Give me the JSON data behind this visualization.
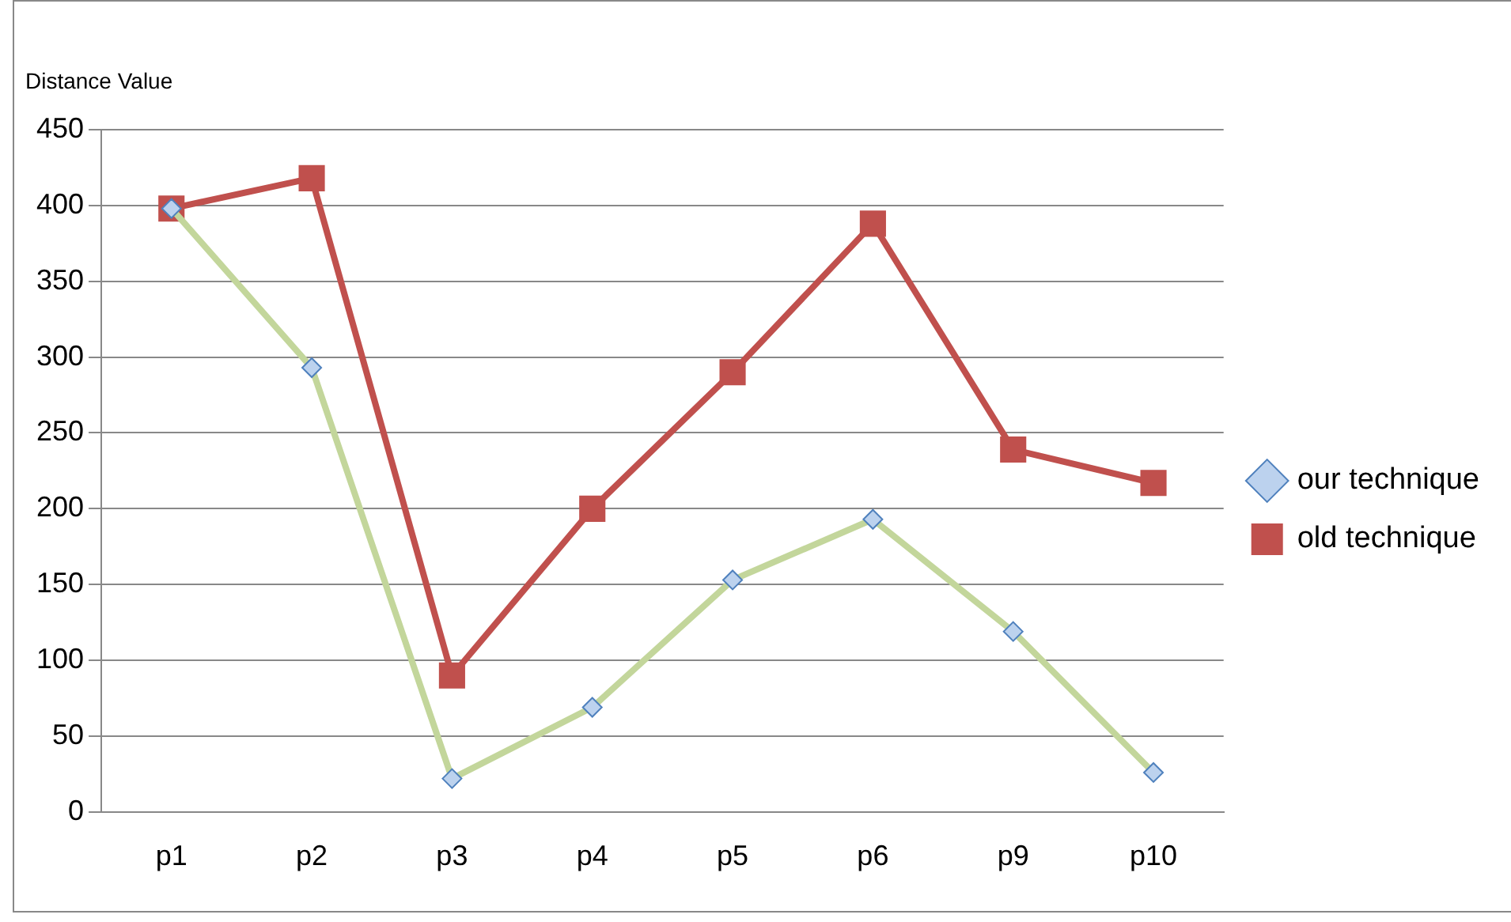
{
  "chart_data": {
    "type": "line",
    "ylabel": "Distance Value",
    "categories": [
      "p1",
      "p2",
      "p3",
      "p4",
      "p5",
      "p6",
      "p9",
      "p10"
    ],
    "series": [
      {
        "name": "our technique",
        "color": "#c3d69b",
        "marker": "diamond",
        "values": [
          398,
          293,
          22,
          69,
          153,
          193,
          119,
          26
        ]
      },
      {
        "name": "old technique",
        "color": "#c0504d",
        "marker": "square",
        "values": [
          398,
          418,
          90,
          200,
          290,
          388,
          239,
          217
        ]
      }
    ],
    "ylim": [
      0,
      450
    ],
    "yticks": [
      0,
      50,
      100,
      150,
      200,
      250,
      300,
      350,
      400,
      450
    ],
    "grid": "y",
    "legend": "right"
  }
}
